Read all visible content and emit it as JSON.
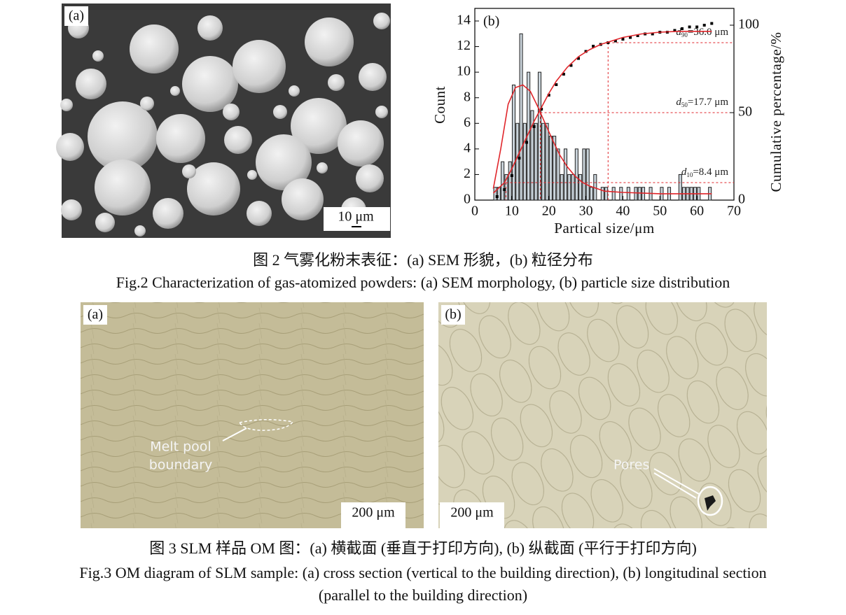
{
  "figure2": {
    "panel_a_label": "(a)",
    "scale_bar": "10 μm",
    "caption_cn": "图 2 气雾化粉末表征：(a) SEM 形貌，(b) 粒径分布",
    "caption_en": "Fig.2  Characterization of gas-atomized powders: (a) SEM morphology, (b) particle size distribution"
  },
  "chart_data": {
    "type": "histogram",
    "panel_label": "(b)",
    "xlabel": "Partical size/μm",
    "ylabel": "Count",
    "y2label": "Cumulative percentage/%",
    "bins": [
      5,
      6,
      7,
      8,
      9,
      10,
      11,
      12,
      13,
      14,
      15,
      16,
      17,
      18,
      19,
      20,
      21,
      22,
      23,
      24,
      25,
      26,
      27,
      28,
      29,
      30,
      31,
      32,
      33,
      34,
      35,
      36,
      37,
      38,
      39,
      40,
      41,
      42,
      43,
      44,
      45,
      46,
      47,
      48,
      49,
      50,
      51,
      52,
      53,
      54,
      55,
      56,
      57,
      58,
      59,
      60,
      61,
      62,
      63,
      64,
      65
    ],
    "counts": [
      1,
      1,
      3,
      2,
      3,
      9,
      6,
      13,
      6,
      10,
      7,
      6,
      10,
      6,
      6,
      5,
      5,
      4,
      2,
      4,
      2,
      2,
      4,
      2,
      4,
      4,
      1,
      2,
      0,
      1,
      1,
      0,
      1,
      0,
      1,
      0,
      1,
      0,
      1,
      1,
      1,
      0,
      1,
      0,
      0,
      1,
      0,
      1,
      0,
      0,
      2,
      1,
      1,
      1,
      1,
      1,
      0,
      0,
      1,
      0
    ],
    "bar_color": "#c9d3da",
    "series": [
      {
        "style": "dots",
        "color": "#000000",
        "axis": "y2",
        "x": [
          6,
          8,
          10,
          12,
          14,
          16,
          18,
          20,
          22,
          24,
          26,
          28,
          30,
          32,
          34,
          36,
          38,
          40,
          42,
          44,
          46,
          48,
          50,
          52,
          54,
          56,
          58,
          60,
          62,
          64
        ],
        "values": [
          2,
          6,
          14,
          24,
          33,
          42,
          52,
          60,
          66,
          72,
          77,
          81,
          85,
          88,
          89,
          90,
          91,
          92,
          93,
          94,
          95,
          95,
          96,
          96,
          97,
          98,
          99,
          99,
          100,
          101
        ]
      },
      {
        "style": "line",
        "color": "#e0262b",
        "x": [
          5,
          7,
          9,
          11,
          13,
          15,
          17,
          19,
          21,
          23,
          25,
          27,
          29,
          31,
          33,
          35,
          40,
          45,
          50,
          55,
          60,
          64
        ],
        "values": [
          0.9,
          4,
          7.5,
          8.8,
          9,
          8.5,
          7.3,
          6,
          4.7,
          3.5,
          2.6,
          1.9,
          1.4,
          1.1,
          0.9,
          0.7,
          0.6,
          0.55,
          0.5,
          0.5,
          0.5,
          0.5
        ]
      },
      {
        "style": "line",
        "color": "#e0262b",
        "axis": "y2",
        "x": [
          5,
          8,
          10,
          12,
          14,
          16,
          18,
          20,
          22,
          25,
          28,
          31,
          34,
          37,
          40,
          45,
          50,
          55,
          60,
          64
        ],
        "values": [
          4,
          10,
          18,
          27,
          36,
          45,
          53,
          61,
          68,
          76,
          82,
          86,
          89,
          91,
          93,
          95,
          96,
          96.5,
          96.5,
          96.5
        ]
      }
    ],
    "annotations": [
      {
        "symbol": "d",
        "subscript": "90",
        "text": "=36.0 μm",
        "x": 36.0,
        "percent": 90
      },
      {
        "symbol": "d",
        "subscript": "50",
        "text": "=17.7 μm",
        "x": 17.7,
        "percent": 50
      },
      {
        "symbol": "d",
        "subscript": "10",
        "text": "=8.4 μm",
        "x": 8.4,
        "percent": 10
      }
    ],
    "xlim": [
      0,
      70
    ],
    "xticks": [
      0,
      10,
      20,
      30,
      40,
      50,
      60,
      70
    ],
    "ylim": [
      0,
      14
    ],
    "yticks": [
      0,
      2,
      4,
      6,
      8,
      10,
      12,
      14
    ],
    "y2lim": [
      0,
      102.4
    ],
    "y2ticks": [
      0,
      50,
      100
    ],
    "grid": false
  },
  "figure3": {
    "panel_a_label": "(a)",
    "panel_b_label": "(b)",
    "annotation_a": [
      "Melt pool",
      "boundary"
    ],
    "annotation_b": "Pores",
    "scale_bar_a": "200 μm",
    "scale_bar_b": "200 μm",
    "caption_cn": "图 3 SLM 样品 OM 图：(a) 横截面 (垂直于打印方向), (b) 纵截面 (平行于打印方向)",
    "caption_en": [
      "Fig.3  OM diagram of SLM sample: (a) cross section (vertical to the building direction), (b) longitudinal section",
      "(parallel to the building direction)"
    ]
  }
}
